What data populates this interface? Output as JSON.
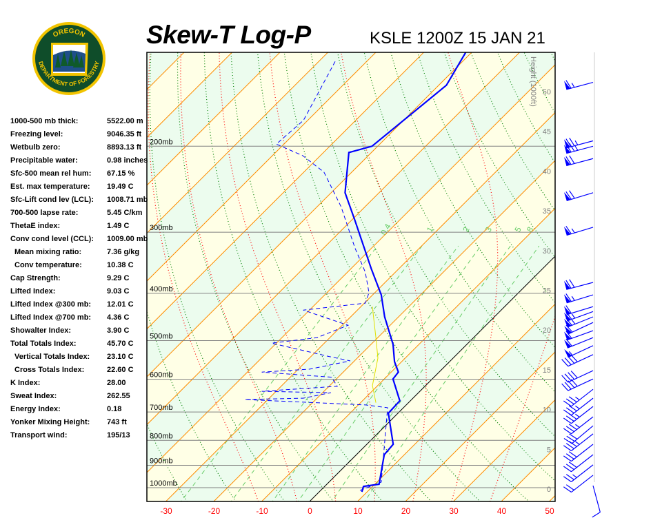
{
  "header": {
    "title": "Skew-T Log-P",
    "station": "KSLE 1200Z 15 JAN 21",
    "logo": {
      "top_text": "OREGON",
      "bottom_text": "DEPARTMENT OF FORESTRY",
      "colors": {
        "ring": "#f2c400",
        "field": "#0f4d2a"
      }
    }
  },
  "stats": [
    {
      "label": "1000-500 mb thick:",
      "value": "5522.00 m"
    },
    {
      "label": "Freezing level:",
      "value": "9046.35 ft"
    },
    {
      "label": "Wetbulb zero:",
      "value": "8893.13 ft"
    },
    {
      "label": "Precipitable water:",
      "value": "0.98 inches"
    },
    {
      "label": "Sfc-500 mean rel hum:",
      "value": "67.15 %"
    },
    {
      "label": "Est. max temperature:",
      "value": "19.49 C"
    },
    {
      "label": "Sfc-Lift cond lev (LCL):",
      "value": "1008.71 mb"
    },
    {
      "label": "700-500 lapse rate:",
      "value": "5.45 C/km"
    },
    {
      "label": "ThetaE index:",
      "value": "1.49 C"
    },
    {
      "label": "Conv cond level (CCL):",
      "value": "1009.00 mb"
    },
    {
      "label": "Mean mixing ratio:",
      "value": "7.36 g/kg",
      "indent": true
    },
    {
      "label": "Conv temperature:",
      "value": "10.38 C",
      "indent": true
    },
    {
      "label": "Cap Strength:",
      "value": "9.29 C"
    },
    {
      "label": "Lifted Index:",
      "value": "9.03 C"
    },
    {
      "label": "Lifted Index @300 mb:",
      "value": "12.01 C"
    },
    {
      "label": "Lifted Index @700 mb:",
      "value": "4.36 C"
    },
    {
      "label": "Showalter Index:",
      "value": "3.90 C"
    },
    {
      "label": "Total Totals Index:",
      "value": "45.70 C"
    },
    {
      "label": "Vertical Totals Index:",
      "value": "23.10 C",
      "indent": true
    },
    {
      "label": "Cross Totals Index:",
      "value": "22.60 C",
      "indent": true
    },
    {
      "label": "K Index:",
      "value": "28.00"
    },
    {
      "label": "Sweat Index:",
      "value": "262.55"
    },
    {
      "label": "Energy Index:",
      "value": "0.18"
    },
    {
      "label": "Yonker Mixing Height:",
      "value": "743 ft"
    },
    {
      "label": "Transport wind:",
      "value": "195/13"
    }
  ],
  "chart_data": {
    "type": "skew-t",
    "title": "Skew-T Log-P",
    "x_ticks": [
      -30,
      -20,
      -10,
      0,
      10,
      20,
      30,
      40,
      50
    ],
    "x_unit": "C",
    "xlim": [
      -30,
      50
    ],
    "pressure_levels": [
      200,
      300,
      400,
      500,
      600,
      700,
      800,
      900,
      1000
    ],
    "pressure_labels": [
      "200mb",
      "300mb",
      "400mb",
      "500mb",
      "600mb",
      "700mb",
      "800mb",
      "900mb",
      "1000mb"
    ],
    "plim": [
      1067,
      128
    ],
    "height_axis": {
      "label": "Height (1000ft)",
      "ticks": [
        "0",
        "5",
        "10",
        "15",
        "20",
        "25",
        "30",
        "35",
        "40",
        "45",
        "50"
      ]
    },
    "mixing_ratio_labels": [
      "0.4",
      "1",
      "2",
      "3",
      "5",
      "8"
    ],
    "colors": {
      "temperature": "#0000ff",
      "dewpoint": "#0000ff",
      "wetbulb": "#e0e000",
      "isotherm": "#ff8c00",
      "zero_isotherm": "#000000",
      "dry_adiabat": "#008000",
      "moist_adiabat": "#ff0000",
      "mixing_ratio": "#66cc66",
      "band_a": "#ffffe6",
      "band_b": "#ecfcee",
      "pressure_line": "#808080",
      "x_tick": "#ff0000",
      "height_tick": "#808080"
    },
    "temperature": {
      "p": [
        1020,
        994,
        984,
        856,
        815,
        704,
        664,
        599,
        580,
        552,
        509,
        447,
        403,
        356,
        284,
        249,
        206,
        200,
        150,
        128
      ],
      "t": [
        8.9,
        8.1,
        10.9,
        5.8,
        5.5,
        -2.0,
        -2.2,
        -8.2,
        -8.5,
        -11.5,
        -15.4,
        -22.9,
        -28.2,
        -35.8,
        -49.2,
        -57.1,
        -64.7,
        -61.2,
        -58.4,
        -61.3
      ]
    },
    "dewpoint": {
      "p": [
        1013,
        974,
        686,
        677,
        660,
        656,
        639,
        635,
        620,
        594,
        580,
        572,
        550,
        539,
        506,
        493,
        465,
        433,
        419,
        399,
        362,
        323,
        266,
        226,
        209,
        198,
        177,
        134
      ],
      "t": [
        8.2,
        10.9,
        -3.3,
        -8.5,
        -34.8,
        -22.9,
        -18.3,
        -33,
        -18.3,
        -21.4,
        -37,
        -27.6,
        -20.9,
        -26.2,
        -41,
        -32.7,
        -28.8,
        -41.3,
        -29.8,
        -31.2,
        -36.3,
        -43.5,
        -55,
        -65.8,
        -73.7,
        -81.6,
        -80.9,
        -86.6
      ]
    },
    "wetbulb": {
      "p": [
        670,
        618,
        543,
        493,
        426
      ],
      "t": [
        -6.8,
        -11.1,
        -15.7,
        -20.4,
        -27.6
      ]
    },
    "winds": [
      {
        "p": 148,
        "dir": 255,
        "spd": 65
      },
      {
        "p": 195,
        "dir": 255,
        "spd": 75
      },
      {
        "p": 200,
        "dir": 255,
        "spd": 75
      },
      {
        "p": 212,
        "dir": 255,
        "spd": 70
      },
      {
        "p": 249,
        "dir": 253,
        "spd": 70
      },
      {
        "p": 293,
        "dir": 253,
        "spd": 65
      },
      {
        "p": 380,
        "dir": 255,
        "spd": 70
      },
      {
        "p": 403,
        "dir": 253,
        "spd": 65
      },
      {
        "p": 426,
        "dir": 253,
        "spd": 60
      },
      {
        "p": 436,
        "dir": 250,
        "spd": 65
      },
      {
        "p": 447,
        "dir": 248,
        "spd": 65
      },
      {
        "p": 459,
        "dir": 245,
        "spd": 60
      },
      {
        "p": 477,
        "dir": 250,
        "spd": 60
      },
      {
        "p": 493,
        "dir": 248,
        "spd": 60
      },
      {
        "p": 512,
        "dir": 245,
        "spd": 55
      },
      {
        "p": 534,
        "dir": 245,
        "spd": 40
      },
      {
        "p": 576,
        "dir": 245,
        "spd": 40
      },
      {
        "p": 599,
        "dir": 245,
        "spd": 40
      },
      {
        "p": 629,
        "dir": 232,
        "spd": 35
      },
      {
        "p": 656,
        "dir": 232,
        "spd": 35
      },
      {
        "p": 682,
        "dir": 232,
        "spd": 35
      },
      {
        "p": 716,
        "dir": 232,
        "spd": 35
      },
      {
        "p": 747,
        "dir": 230,
        "spd": 30
      },
      {
        "p": 776,
        "dir": 232,
        "spd": 35
      },
      {
        "p": 815,
        "dir": 232,
        "spd": 30
      },
      {
        "p": 856,
        "dir": 232,
        "spd": 30
      },
      {
        "p": 898,
        "dir": 232,
        "spd": 25
      },
      {
        "p": 943,
        "dir": 232,
        "spd": 20
      },
      {
        "p": 1010,
        "dir": 165,
        "spd": 10
      }
    ]
  }
}
